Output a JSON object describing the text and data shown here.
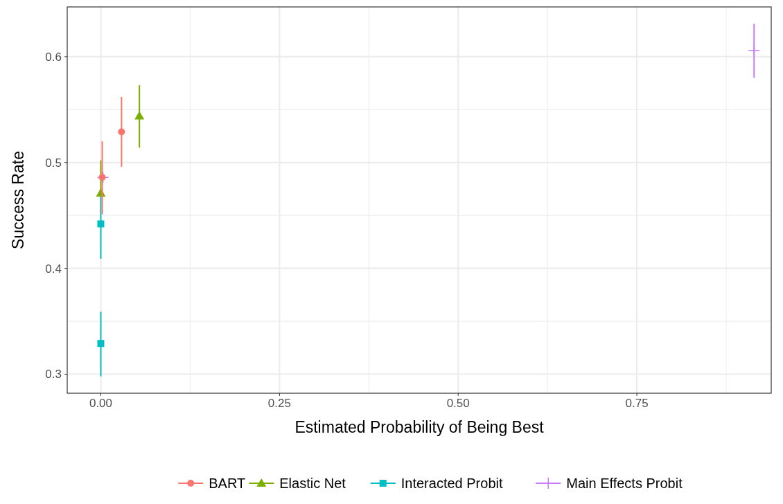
{
  "chart_data": {
    "type": "scatter",
    "xlabel": "Estimated Probability of Being Best",
    "ylabel": "Success Rate",
    "xlim": [
      -0.047,
      0.938
    ],
    "ylim": [
      0.282,
      0.647
    ],
    "xticks": [
      {
        "value": 0,
        "label": "0.00"
      },
      {
        "value": 0.25,
        "label": "0.25"
      },
      {
        "value": 0.5,
        "label": "0.50"
      },
      {
        "value": 0.75,
        "label": "0.75"
      }
    ],
    "yticks": [
      0.3,
      0.4,
      0.5,
      0.6
    ],
    "grid": true,
    "legend": "bottom",
    "series": [
      {
        "name": "BART",
        "color": "#f8766d",
        "marker": "circle",
        "x": [
          0.002,
          0.029
        ],
        "values": [
          0.486,
          0.529
        ],
        "errors": [
          [
            0.451,
            0.52
          ],
          [
            0.496,
            0.562
          ]
        ]
      },
      {
        "name": "Elastic Net",
        "color": "#7cae00",
        "marker": "triangle",
        "x": [
          0,
          0.054
        ],
        "values": [
          0.471,
          0.544
        ],
        "errors": [
          [
            0.471,
            0.502
          ],
          [
            0.514,
            0.573
          ]
        ]
      },
      {
        "name": "Interacted Probit",
        "color": "#00bfc4",
        "marker": "square",
        "x": [
          0,
          0
        ],
        "values": [
          0.442,
          0.329
        ],
        "errors": [
          [
            0.409,
            0.475
          ],
          [
            0.298,
            0.359
          ]
        ]
      },
      {
        "name": "Main Effects Probit",
        "color": "#c77cff",
        "marker": "cross",
        "x": [
          0.003,
          0.914
        ],
        "values": [
          0.486,
          0.606
        ],
        "errors": [
          null,
          [
            0.58,
            0.631
          ]
        ]
      }
    ]
  }
}
